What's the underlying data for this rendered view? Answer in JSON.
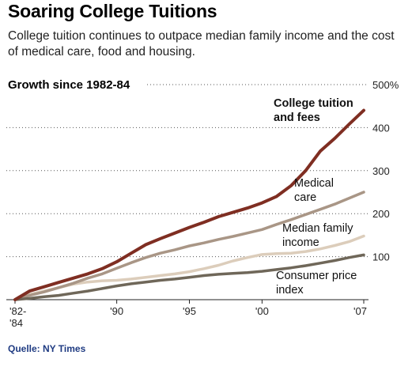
{
  "header": {
    "title": "Soaring College Tuitions",
    "subtitle": "College tuition continues to outpace median family income and the cost of medical care, food and housing."
  },
  "source": "Quelle: NY Times",
  "chart_data": {
    "type": "line",
    "title": "Growth since 1982-84",
    "xlabel": "",
    "ylabel": "",
    "y_unit": "%",
    "xlim": [
      1983,
      2007
    ],
    "ylim": [
      0,
      500
    ],
    "y_ticks": [
      100,
      200,
      300,
      400,
      500
    ],
    "y_tick_labels": [
      "100",
      "200",
      "300",
      "400",
      "500%"
    ],
    "x_ticks": [
      1983,
      1990,
      1995,
      2000,
      2007
    ],
    "x_tick_labels": [
      [
        "'82-",
        "'84"
      ],
      [
        "'90"
      ],
      [
        "'95"
      ],
      [
        "'00"
      ],
      [
        "'07"
      ]
    ],
    "grid": "dotted horizontal",
    "legend": "direct labels on lines",
    "x": [
      1983,
      1984,
      1985,
      1986,
      1987,
      1988,
      1989,
      1990,
      1991,
      1992,
      1993,
      1994,
      1995,
      1996,
      1997,
      1998,
      1999,
      2000,
      2001,
      2002,
      2003,
      2004,
      2005,
      2006,
      2007
    ],
    "series": [
      {
        "name": "College tuition and fees",
        "label_lines": [
          "College tuition",
          "and fees"
        ],
        "color": "#7f2e22",
        "stroke_width": 4,
        "values": [
          0,
          20,
          30,
          40,
          50,
          60,
          72,
          88,
          108,
          128,
          142,
          155,
          168,
          180,
          193,
          203,
          213,
          225,
          240,
          265,
          300,
          345,
          375,
          408,
          440
        ]
      },
      {
        "name": "Medical care",
        "label_lines": [
          "Medical",
          "care"
        ],
        "color": "#a99686",
        "stroke_width": 3.5,
        "values": [
          0,
          10,
          18,
          28,
          38,
          50,
          60,
          73,
          86,
          98,
          108,
          116,
          125,
          132,
          140,
          147,
          155,
          163,
          175,
          186,
          198,
          210,
          222,
          236,
          250
        ]
      },
      {
        "name": "Median family income",
        "label_lines": [
          "Median family",
          "income"
        ],
        "color": "#dccdbb",
        "stroke_width": 3.5,
        "values": [
          0,
          12,
          20,
          28,
          36,
          41,
          44,
          45,
          48,
          52,
          56,
          60,
          65,
          72,
          80,
          90,
          98,
          105,
          107,
          108,
          112,
          118,
          126,
          135,
          148
        ]
      },
      {
        "name": "Consumer price index",
        "label_lines": [
          "Consumer price",
          "index"
        ],
        "color": "#6f6759",
        "stroke_width": 3.5,
        "values": [
          0,
          3,
          7,
          10,
          15,
          20,
          26,
          32,
          37,
          41,
          45,
          48,
          52,
          56,
          59,
          61,
          63,
          66,
          70,
          74,
          79,
          85,
          91,
          98,
          104
        ]
      }
    ]
  }
}
